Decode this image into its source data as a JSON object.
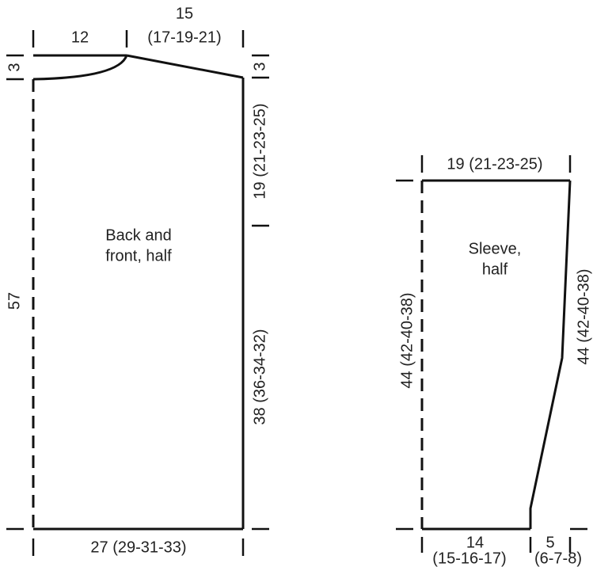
{
  "back": {
    "label": [
      "Back and",
      "front, half"
    ],
    "neck_width": "12",
    "shoulder_width": [
      "15",
      "(17-19-21)"
    ],
    "neck_depth": "3",
    "shoulder_drop": "3",
    "armhole_height": "19 (21-23-25)",
    "side_length": "38 (36-34-32)",
    "total_length": "57",
    "width": "27 (29-31-33)"
  },
  "sleeve": {
    "label": [
      "Sleeve,",
      "half"
    ],
    "top_width": "19 (21-23-25)",
    "inner_length": "44 (42-40-38)",
    "outer_length": "44 (42-40-38)",
    "cuff_width": [
      "14",
      "(15-16-17)"
    ],
    "cuff_increase": [
      "5",
      "(6-7-8)"
    ]
  }
}
